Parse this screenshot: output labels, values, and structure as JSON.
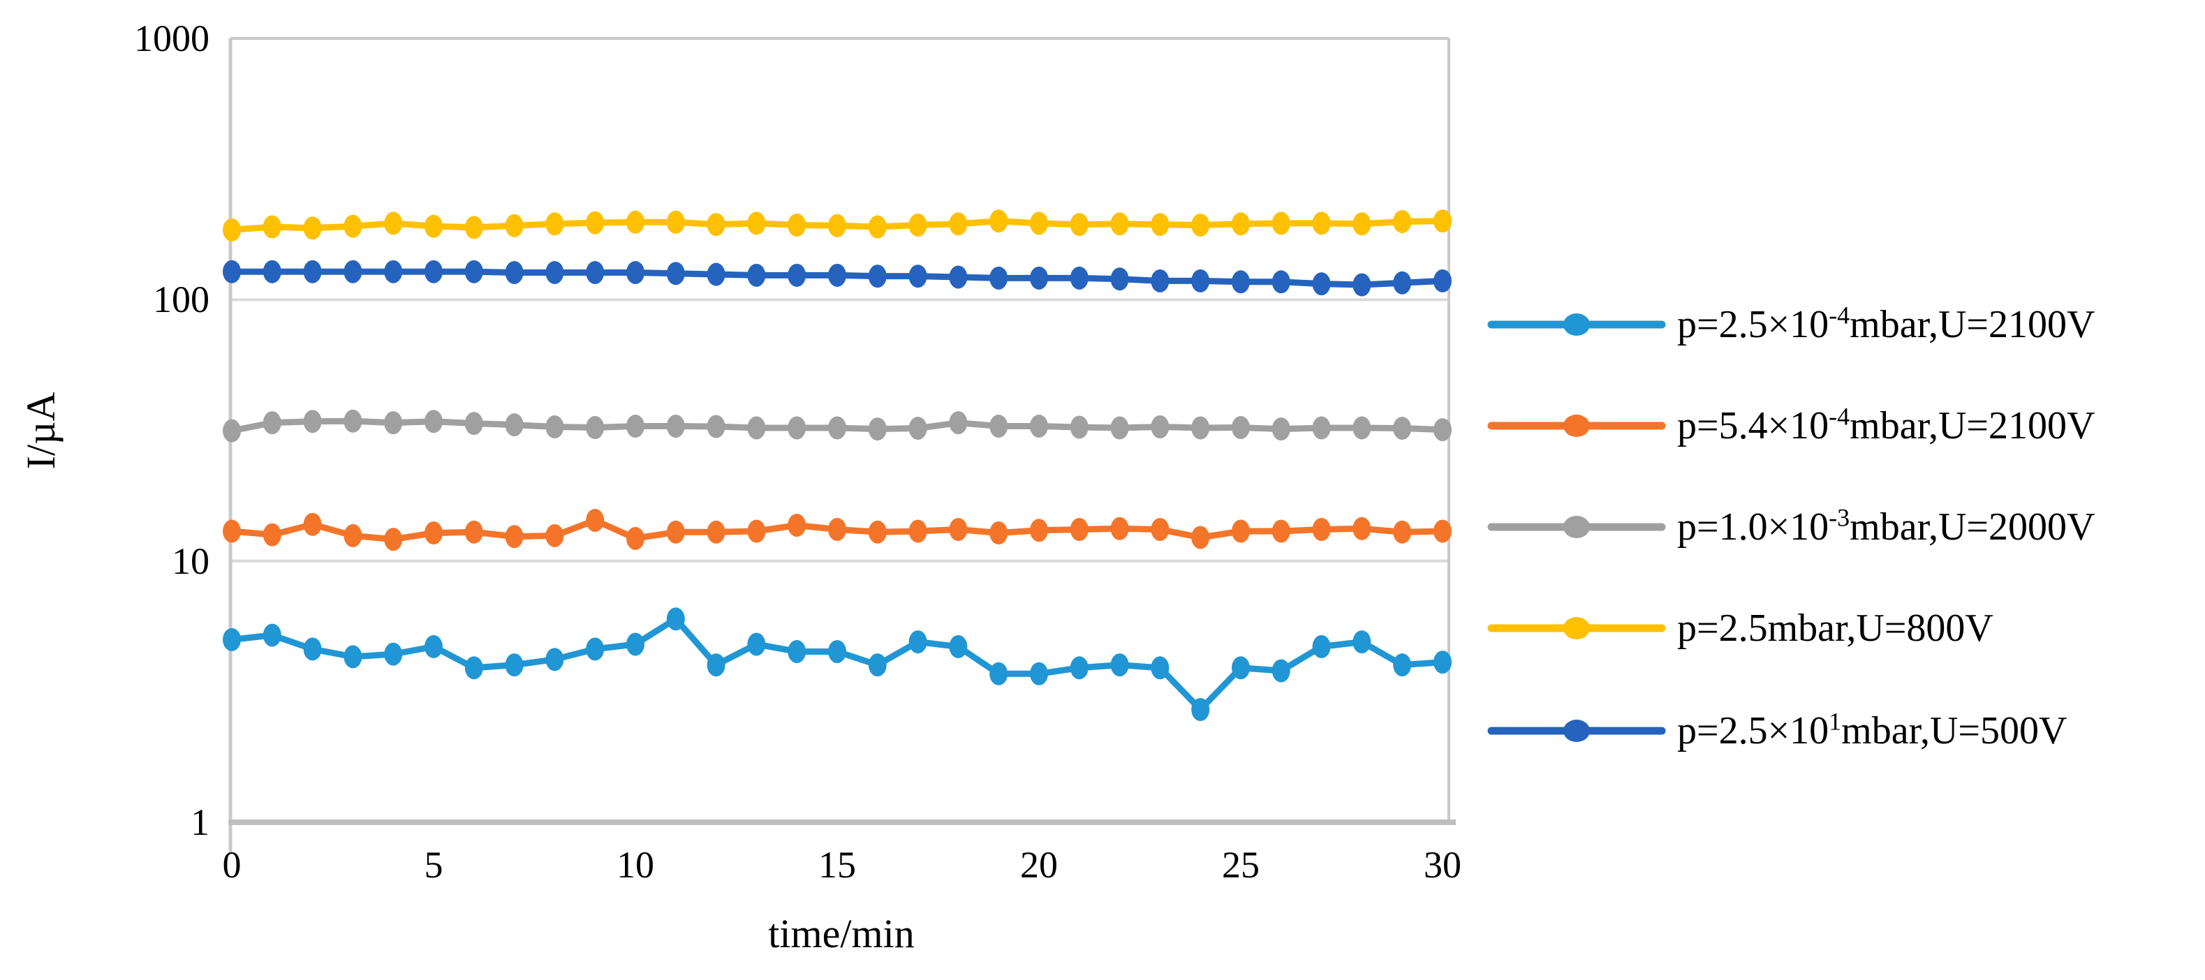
{
  "chart_data": {
    "type": "line",
    "title": "",
    "xlabel": "time/min",
    "ylabel": "I/µA",
    "x_scale": "linear",
    "y_scale": "log",
    "xlim": [
      0,
      30
    ],
    "ylim": [
      1,
      1000
    ],
    "grid": "horizontal-major",
    "legend_position": "right",
    "x_tick_labels": [
      "0",
      "5",
      "10",
      "15",
      "20",
      "25",
      "30"
    ],
    "x_tick_values": [
      0,
      5,
      10,
      15,
      20,
      25,
      30
    ],
    "y_tick_labels": [
      "1000",
      "100",
      "10",
      "1"
    ],
    "y_tick_values": [
      1000,
      100,
      10,
      1
    ],
    "x": [
      0,
      1,
      2,
      3,
      4,
      5,
      6,
      7,
      8,
      9,
      10,
      11,
      12,
      13,
      14,
      15,
      16,
      17,
      18,
      19,
      20,
      21,
      22,
      23,
      24,
      25,
      26,
      27,
      28,
      29,
      30
    ],
    "series": [
      {
        "name": "p=2.5×10⁻⁴mbar,U=2100V",
        "label_pre": "p=2.5×10",
        "label_sup": "-4",
        "label_post": "mbar,U=2100V",
        "color": "#2196D4",
        "values": [
          5.0,
          5.2,
          4.6,
          4.3,
          4.4,
          4.7,
          3.9,
          4.0,
          4.2,
          4.6,
          4.8,
          6.0,
          4.0,
          4.8,
          4.5,
          4.5,
          4.0,
          4.9,
          4.7,
          3.7,
          3.7,
          3.9,
          4.0,
          3.9,
          2.7,
          3.9,
          3.8,
          4.7,
          4.9,
          4.0,
          4.1
        ]
      },
      {
        "name": "p=5.4×10⁻⁴mbar,U=2100V",
        "label_pre": "p=5.4×10",
        "label_sup": "-4",
        "label_post": "mbar,U=2100V",
        "color": "#F4752A",
        "values": [
          13.0,
          12.6,
          13.8,
          12.5,
          12.1,
          12.8,
          12.9,
          12.4,
          12.5,
          14.3,
          12.2,
          12.9,
          12.9,
          13.0,
          13.7,
          13.2,
          12.9,
          13.0,
          13.2,
          12.8,
          13.1,
          13.2,
          13.3,
          13.2,
          12.3,
          13.0,
          13.0,
          13.2,
          13.3,
          12.9,
          13.0
        ]
      },
      {
        "name": "p=1.0×10⁻³mbar,U=2000V",
        "label_pre": "p=1.0×10",
        "label_sup": "-3",
        "label_post": "mbar,U=2000V",
        "color": "#A0A0A0",
        "values": [
          31.5,
          33.8,
          34.2,
          34.3,
          33.8,
          34.2,
          33.6,
          33.2,
          32.6,
          32.4,
          32.8,
          32.8,
          32.7,
          32.3,
          32.3,
          32.3,
          32.0,
          32.2,
          33.8,
          32.8,
          32.8,
          32.5,
          32.3,
          32.6,
          32.3,
          32.4,
          32.0,
          32.3,
          32.3,
          32.2,
          31.8
        ]
      },
      {
        "name": "p=2.5mbar,U=800V",
        "label_pre": "p=2.5mbar,U=800V",
        "label_sup": "",
        "label_post": "",
        "color": "#FFC000",
        "values": [
          185,
          190,
          188,
          191,
          196,
          191,
          189,
          192,
          195,
          197,
          198,
          198,
          194,
          196,
          193,
          192,
          190,
          193,
          195,
          200,
          196,
          194,
          195,
          194,
          193,
          195,
          196,
          196,
          195,
          199,
          200
        ]
      },
      {
        "name": "p=2.5×10¹mbar,U=500V",
        "label_pre": "p=2.5×10",
        "label_sup": "1",
        "label_post": "mbar,U=500V",
        "color": "#2563BE",
        "values": [
          128,
          128,
          128,
          128,
          128,
          128,
          128,
          127,
          127,
          127,
          127,
          126,
          125,
          124,
          124,
          124,
          123,
          123,
          122,
          121,
          121,
          121,
          120,
          118,
          118,
          117,
          117,
          115,
          114,
          116,
          118
        ]
      }
    ],
    "colors": {
      "gridline": "#D9D9D9",
      "axis_border": "#C9C9C9",
      "bottom_axis": "#BFBFBF"
    }
  }
}
